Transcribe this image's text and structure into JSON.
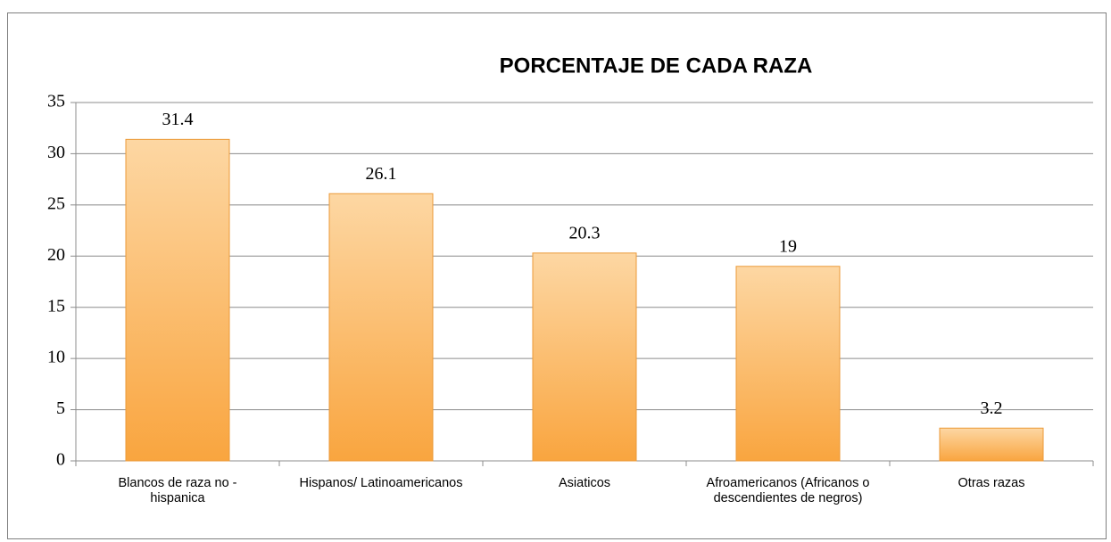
{
  "chart_data": {
    "type": "bar",
    "title": "PORCENTAJE DE CADA RAZA",
    "categories": [
      "Blancos de raza no - hispanica",
      "Hispanos/ Latinoamericanos",
      "Asiaticos",
      "Afroamericanos (Africanos o descendientes de negros)",
      "Otras razas"
    ],
    "values": [
      31.4,
      26.1,
      20.3,
      19,
      3.2
    ],
    "color": "#f9a645",
    "ylim": [
      0,
      35
    ],
    "yticks": [
      0,
      5,
      10,
      15,
      20,
      25,
      30,
      35
    ],
    "grid": true
  }
}
